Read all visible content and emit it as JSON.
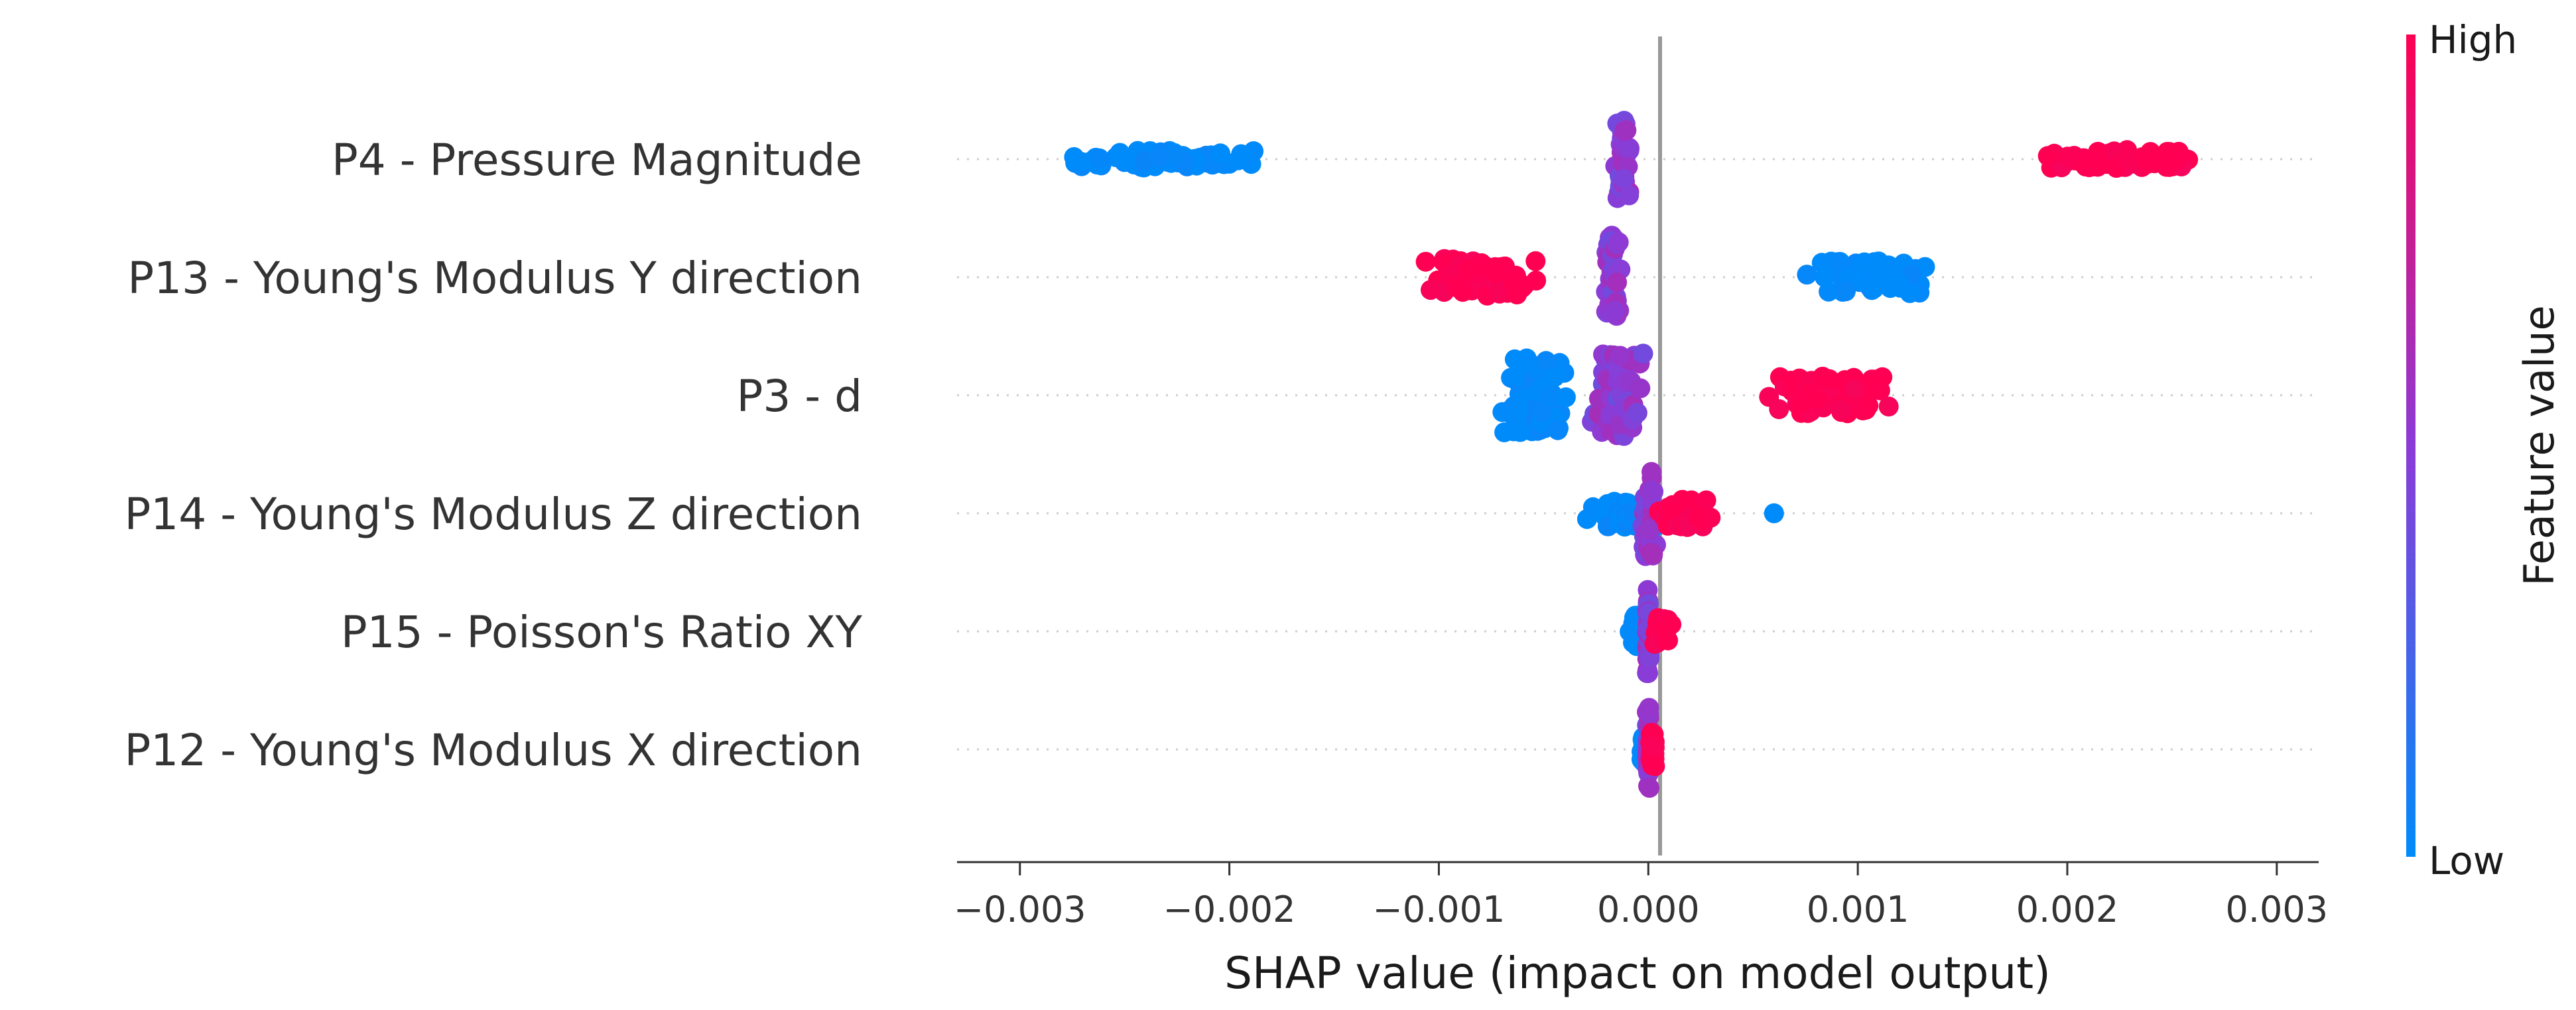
{
  "chart_data": {
    "type": "scatter",
    "subtype": "shap-beeswarm",
    "title": "",
    "xlabel": "SHAP value (impact on model output)",
    "ylabel": "",
    "xlim": [
      -0.0033,
      0.0032
    ],
    "x_ticks": [
      -0.003,
      -0.002,
      -0.001,
      0.0,
      0.001,
      0.002,
      0.003
    ],
    "x_tick_labels": [
      "−0.003",
      "−0.002",
      "−0.001",
      "0.000",
      "0.001",
      "0.002",
      "0.003"
    ],
    "zero_line": true,
    "grid": false,
    "colorbar": {
      "title": "Feature value",
      "high_label": "High",
      "low_label": "Low",
      "high_color": "#ff0052",
      "low_color": "#008bfb"
    },
    "features": [
      {
        "name": "P4 - Pressure Magnitude",
        "clusters": [
          {
            "x_min": -0.00297,
            "x_max": -0.00168,
            "center": -0.0023,
            "count": 70,
            "spread": 0.18,
            "color_value": 0.0
          },
          {
            "x_min": -0.00017,
            "x_max": -7e-05,
            "center": -0.00012,
            "count": 45,
            "spread": 0.85,
            "color_value": 0.5
          },
          {
            "x_min": 0.00178,
            "x_max": 0.00275,
            "center": 0.0022,
            "count": 70,
            "spread": 0.2,
            "color_value": 1.0
          }
        ]
      },
      {
        "name": "P13 - Young's Modulus Y direction",
        "clusters": [
          {
            "x_min": -0.00115,
            "x_max": -0.00043,
            "center": -0.00095,
            "count": 55,
            "spread": 0.4,
            "color_value": 1.0
          },
          {
            "x_min": -0.00022,
            "x_max": -0.00012,
            "center": -0.00017,
            "count": 45,
            "spread": 0.9,
            "color_value": 0.5
          },
          {
            "x_min": 0.0007,
            "x_max": 0.00143,
            "center": 0.001,
            "count": 55,
            "spread": 0.35,
            "color_value": 0.0
          }
        ]
      },
      {
        "name": "P3 - d",
        "clusters": [
          {
            "x_min": -0.00075,
            "x_max": -0.00035,
            "center": -0.0006,
            "count": 85,
            "spread": 0.8,
            "color_value": 0.0
          },
          {
            "x_min": -0.0003,
            "x_max": 0.0,
            "center": -0.00015,
            "count": 70,
            "spread": 0.9,
            "color_value": 0.5
          },
          {
            "x_min": 0.00048,
            "x_max": 0.00124,
            "center": 0.001,
            "count": 70,
            "spread": 0.4,
            "color_value": 1.0
          }
        ]
      },
      {
        "name": "P14 - Young's Modulus Z direction",
        "clusters": [
          {
            "x_min": -0.0003,
            "x_max": 0.0001,
            "center": -5e-05,
            "count": 45,
            "spread": 0.3,
            "color_value": 0.0
          },
          {
            "x_min": -5e-05,
            "x_max": 5e-05,
            "center": -2e-05,
            "count": 40,
            "spread": 0.95,
            "color_value": 0.5
          },
          {
            "x_min": 0.0,
            "x_max": 0.00032,
            "center": 0.0001,
            "count": 35,
            "spread": 0.3,
            "color_value": 1.0
          },
          {
            "x_min": 0.0006,
            "x_max": 0.0006,
            "center": 0.0006,
            "count": 1,
            "spread": 0.0,
            "color_value": 0.0
          }
        ]
      },
      {
        "name": "P15 - Poisson's Ratio XY",
        "clusters": [
          {
            "x_min": -0.0001,
            "x_max": -2e-05,
            "center": -4e-05,
            "count": 30,
            "spread": 0.35,
            "color_value": 0.0
          },
          {
            "x_min": -1e-05,
            "x_max": 1e-05,
            "center": 0.0,
            "count": 35,
            "spread": 0.95,
            "color_value": 0.5
          },
          {
            "x_min": 1e-05,
            "x_max": 0.00012,
            "center": 5e-05,
            "count": 30,
            "spread": 0.3,
            "color_value": 1.0
          }
        ]
      },
      {
        "name": "P12 - Young's Modulus X direction",
        "clusters": [
          {
            "x_min": -4e-05,
            "x_max": -1e-05,
            "center": -2e-05,
            "count": 15,
            "spread": 0.3,
            "color_value": 0.0
          },
          {
            "x_min": -1e-05,
            "x_max": 1e-05,
            "center": 0.0,
            "count": 30,
            "spread": 0.9,
            "color_value": 0.5
          },
          {
            "x_min": 0.0,
            "x_max": 4e-05,
            "center": 2e-05,
            "count": 25,
            "spread": 0.4,
            "color_value": 1.0
          }
        ]
      }
    ]
  }
}
